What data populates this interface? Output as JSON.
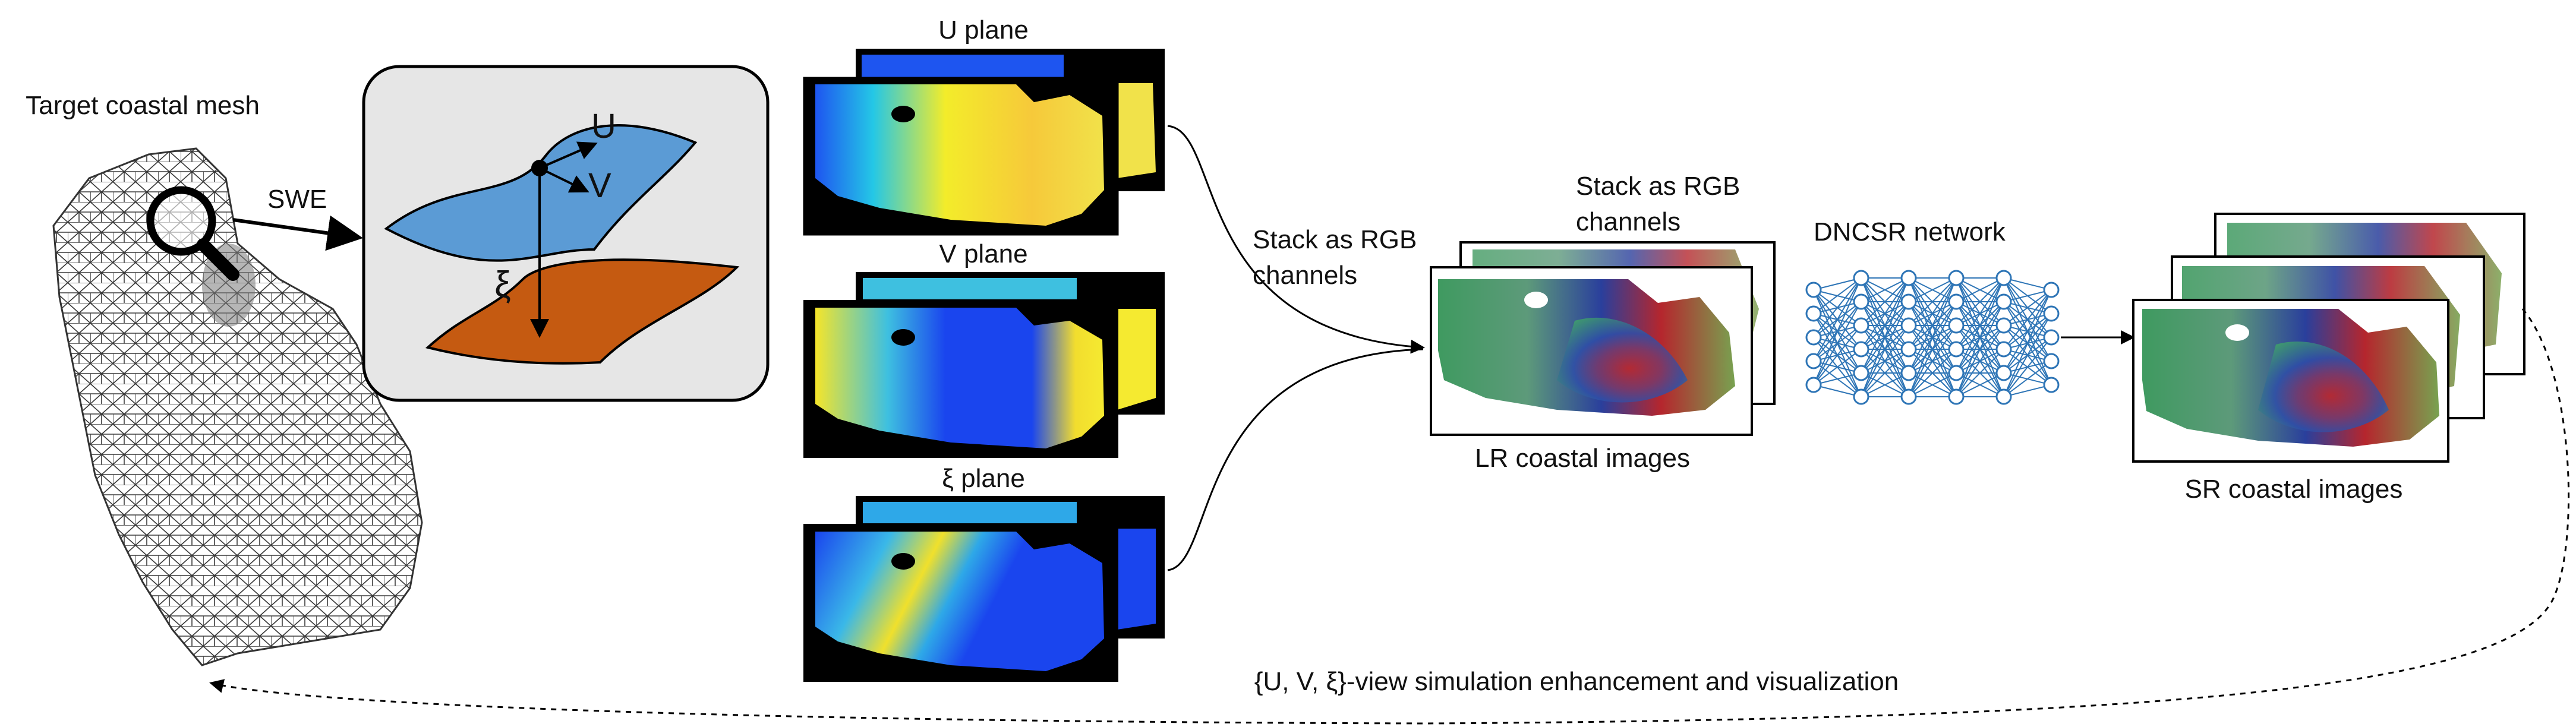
{
  "labels": {
    "target_mesh": "Target coastal mesh",
    "swe": "SWE",
    "axis_u": "U",
    "axis_v": "V",
    "axis_xi": "ξ",
    "u_plane": "U plane",
    "v_plane": "V plane",
    "xi_plane": "ξ plane",
    "stack_left_1": "Stack as RGB",
    "stack_left_2": "channels",
    "stack_mid_1": "Stack as RGB",
    "stack_mid_2": "channels",
    "lr_images": "LR coastal images",
    "network": "DNCSR network",
    "sr_images": "SR coastal images",
    "feedback": "{U, V, ξ}-view simulation enhancement and visualization"
  },
  "colors": {
    "swe_box_fill": "#e6e6e6",
    "plane_top": "#5b9bd5",
    "plane_bottom": "#c55a11",
    "network": "#2e75b6",
    "mesh": "#333333"
  },
  "icons": {
    "magnifier": "magnifier-icon"
  }
}
